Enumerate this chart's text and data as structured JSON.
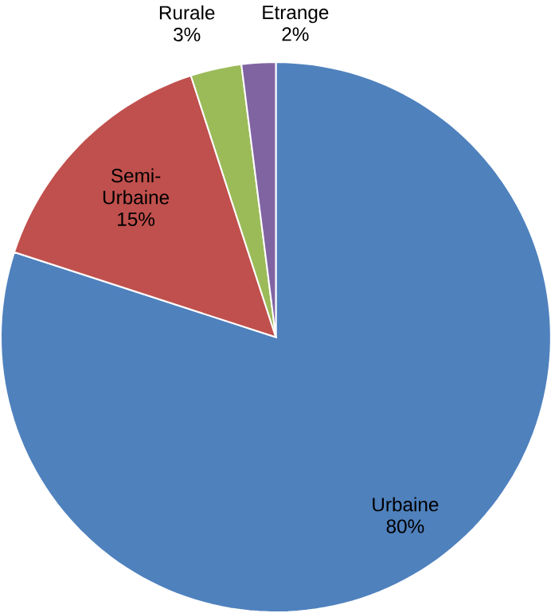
{
  "chart_data": {
    "type": "pie",
    "categories": [
      "Urbaine",
      "Semi-Urbaine",
      "Rurale",
      "Etrange"
    ],
    "values": [
      80,
      15,
      3,
      2
    ],
    "colors": [
      "#4f81bd",
      "#c0504d",
      "#9bbb59",
      "#8064a2"
    ],
    "value_labels": [
      "80%",
      "15%",
      "3%",
      "2%"
    ]
  }
}
